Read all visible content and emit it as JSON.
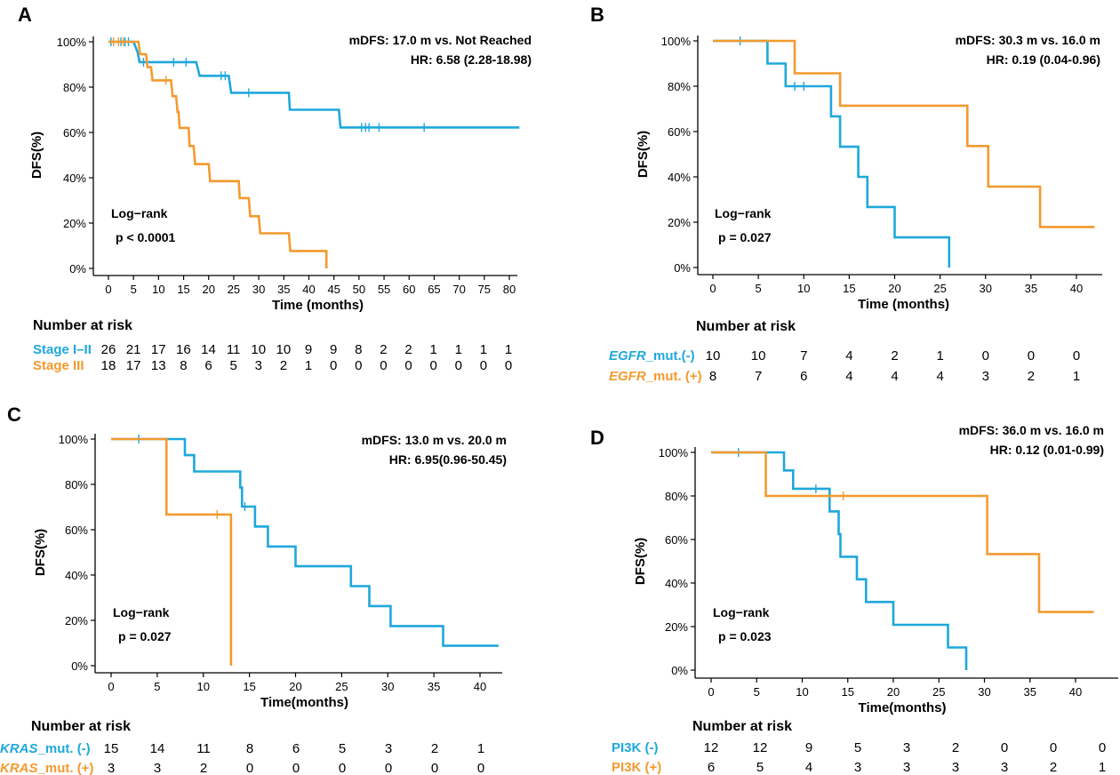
{
  "colors": {
    "blue": "#1EA8DB",
    "orange": "#F39A2F",
    "axis": "#000000"
  },
  "chart_data": [
    {
      "panel_label": "A",
      "type": "line",
      "subtype": "kaplan-meier",
      "ylabel": "DFS(%)",
      "xlabel": "Time (months)",
      "xlim": [
        0,
        82
      ],
      "xticks": [
        0,
        5,
        10,
        15,
        20,
        25,
        30,
        35,
        40,
        45,
        50,
        55,
        60,
        65,
        70,
        75,
        80
      ],
      "ylim": [
        0,
        100
      ],
      "yticks": [
        "0%",
        "20%",
        "40%",
        "60%",
        "80%",
        "100%"
      ],
      "annotation": [
        "mDFS:  17.0  m  vs.  Not Reached",
        "HR: 6.58 (2.28-18.98)"
      ],
      "test": [
        "Log−rank",
        "p < 0.0001"
      ],
      "risk_header": "Number at risk",
      "series": [
        {
          "name": "Stage I–II",
          "name_italic": "",
          "name_rest": "Stage I–II",
          "color": "blue",
          "steps": [
            [
              0,
              100
            ],
            [
              5,
              100
            ],
            [
              5.8,
              95.5
            ],
            [
              6.2,
              91
            ],
            [
              17.5,
              91
            ],
            [
              18.2,
              85
            ],
            [
              24,
              85
            ],
            [
              24.5,
              77.5
            ],
            [
              36,
              77.5
            ],
            [
              36.2,
              70
            ],
            [
              46,
              70
            ],
            [
              46.3,
              62.2
            ],
            [
              82,
              62.2
            ]
          ],
          "censors": [
            [
              0.5,
              100
            ],
            [
              2.5,
              100
            ],
            [
              3.3,
              100
            ],
            [
              4,
              100
            ],
            [
              7,
              91
            ],
            [
              13,
              91
            ],
            [
              15.5,
              91
            ],
            [
              22.5,
              85
            ],
            [
              23.3,
              85
            ],
            [
              28,
              77.5
            ],
            [
              50.5,
              62.2
            ],
            [
              51.3,
              62.2
            ],
            [
              52,
              62.2
            ],
            [
              54,
              62.2
            ],
            [
              63,
              62.2
            ]
          ],
          "risk": [
            "26",
            "21",
            "17",
            "16",
            "14",
            "11",
            "10",
            "10",
            "9",
            "9",
            "8",
            "2",
            "2",
            "1",
            "1",
            "1",
            "1"
          ]
        },
        {
          "name": "Stage III",
          "name_italic": "",
          "name_rest": "Stage III",
          "color": "orange",
          "steps": [
            [
              0,
              100
            ],
            [
              6,
              100
            ],
            [
              6.3,
              94.5
            ],
            [
              7.5,
              94.5
            ],
            [
              7.8,
              88.8
            ],
            [
              8.5,
              88.8
            ],
            [
              8.8,
              83
            ],
            [
              12.5,
              83
            ],
            [
              12.8,
              76
            ],
            [
              13.5,
              76
            ],
            [
              13.8,
              69
            ],
            [
              14,
              69
            ],
            [
              14.2,
              62
            ],
            [
              16,
              62
            ],
            [
              16.2,
              54
            ],
            [
              17,
              54
            ],
            [
              17.3,
              46
            ],
            [
              20,
              46
            ],
            [
              20.3,
              38.5
            ],
            [
              26,
              38.5
            ],
            [
              26.2,
              31
            ],
            [
              28,
              31
            ],
            [
              28.3,
              23
            ],
            [
              30,
              23
            ],
            [
              30.3,
              15.5
            ],
            [
              36,
              15.5
            ],
            [
              36.3,
              7.7
            ],
            [
              43.5,
              7.7
            ],
            [
              43.5,
              0
            ]
          ],
          "censors": [
            [
              1,
              100
            ],
            [
              2,
              100
            ],
            [
              3,
              100
            ],
            [
              11.5,
              83
            ]
          ],
          "risk": [
            "18",
            "17",
            "13",
            "8",
            "6",
            "5",
            "3",
            "2",
            "1",
            "0",
            "0",
            "0",
            "0",
            "0",
            "0",
            "0",
            "0"
          ]
        }
      ]
    },
    {
      "panel_label": "B",
      "type": "line",
      "subtype": "kaplan-meier",
      "ylabel": "DFS(%)",
      "xlabel": "Time (months)",
      "xlim": [
        0,
        42
      ],
      "xticks": [
        0,
        5,
        10,
        15,
        20,
        25,
        30,
        35,
        40
      ],
      "ylim": [
        0,
        100
      ],
      "yticks": [
        "0%",
        "20%",
        "40%",
        "60%",
        "80%",
        "100%"
      ],
      "annotation": [
        "mDFS: 30.3 m vs. 16.0 m",
        "HR: 0.19 (0.04-0.96)"
      ],
      "test": [
        "Log−rank",
        "p = 0.027"
      ],
      "risk_header": "Number at risk",
      "series": [
        {
          "name": "EGFR_mut.(-)",
          "name_italic": "EGFR",
          "name_rest": "_mut.(-)",
          "color": "blue",
          "steps": [
            [
              0,
              100
            ],
            [
              6,
              100
            ],
            [
              6,
              90
            ],
            [
              8,
              90
            ],
            [
              8,
              80
            ],
            [
              13,
              80
            ],
            [
              13,
              66.7
            ],
            [
              14,
              66.7
            ],
            [
              14,
              53.3
            ],
            [
              16,
              53.3
            ],
            [
              16,
              40
            ],
            [
              17,
              40
            ],
            [
              17,
              26.7
            ],
            [
              20,
              26.7
            ],
            [
              20,
              13.3
            ],
            [
              26,
              13.3
            ],
            [
              26,
              0
            ]
          ],
          "censors": [
            [
              3,
              100
            ],
            [
              9,
              80
            ],
            [
              10,
              80
            ]
          ],
          "risk": [
            "10",
            "10",
            "7",
            "4",
            "2",
            "1",
            "0",
            "0",
            "0"
          ]
        },
        {
          "name": "EGFR_mut. (+)",
          "name_italic": "EGFR",
          "name_rest": "_mut. (+)",
          "color": "orange",
          "steps": [
            [
              0,
              100
            ],
            [
              9,
              100
            ],
            [
              9,
              85.7
            ],
            [
              14,
              85.7
            ],
            [
              14,
              71.4
            ],
            [
              28,
              71.4
            ],
            [
              28,
              53.6
            ],
            [
              30.3,
              53.6
            ],
            [
              30.3,
              35.7
            ],
            [
              36,
              35.7
            ],
            [
              36,
              17.9
            ],
            [
              42,
              17.9
            ]
          ],
          "censors": [],
          "risk": [
            "8",
            "7",
            "6",
            "4",
            "4",
            "4",
            "3",
            "2",
            "1"
          ]
        }
      ]
    },
    {
      "panel_label": "C",
      "type": "line",
      "subtype": "kaplan-meier",
      "ylabel": "DFS(%)",
      "xlabel": "Time(months)",
      "xlim": [
        0,
        42
      ],
      "xticks": [
        0,
        5,
        10,
        15,
        20,
        25,
        30,
        35,
        40
      ],
      "ylim": [
        0,
        100
      ],
      "yticks": [
        "0%",
        "20%",
        "40%",
        "60%",
        "80%",
        "100%"
      ],
      "annotation": [
        "mDFS: 13.0 m vs. 20.0 m",
        "HR: 6.95(0.96-50.45)"
      ],
      "test": [
        "Log−rank",
        "p = 0.027"
      ],
      "risk_header": "Number at risk",
      "series": [
        {
          "name": "KRAS_mut. (-)",
          "name_italic": "KRAS",
          "name_rest": "_mut. (-)",
          "color": "blue",
          "steps": [
            [
              0,
              100
            ],
            [
              8,
              100
            ],
            [
              8,
              92.9
            ],
            [
              9,
              92.9
            ],
            [
              9,
              85.7
            ],
            [
              14,
              85.7
            ],
            [
              14,
              78.6
            ],
            [
              14.2,
              78.6
            ],
            [
              14.2,
              70.2
            ],
            [
              15.6,
              70.2
            ],
            [
              15.6,
              61.4
            ],
            [
              17,
              61.4
            ],
            [
              17,
              52.6
            ],
            [
              20,
              52.6
            ],
            [
              20,
              43.9
            ],
            [
              26,
              43.9
            ],
            [
              26,
              35.1
            ],
            [
              28,
              35.1
            ],
            [
              28,
              26.3
            ],
            [
              30.3,
              26.3
            ],
            [
              30.3,
              17.5
            ],
            [
              36,
              17.5
            ],
            [
              36,
              8.8
            ],
            [
              42,
              8.8
            ]
          ],
          "censors": [
            [
              3,
              100
            ],
            [
              14.5,
              70.2
            ]
          ],
          "risk": [
            "15",
            "14",
            "11",
            "8",
            "6",
            "5",
            "3",
            "2",
            "1"
          ]
        },
        {
          "name": "KRAS_mut. (+)",
          "name_italic": "KRAS",
          "name_rest": "_mut. (+)",
          "color": "orange",
          "steps": [
            [
              0,
              100
            ],
            [
              6,
              100
            ],
            [
              6,
              66.7
            ],
            [
              13,
              66.7
            ],
            [
              13,
              0
            ]
          ],
          "censors": [
            [
              11.5,
              66.7
            ]
          ],
          "risk": [
            "3",
            "3",
            "2",
            "0",
            "0",
            "0",
            "0",
            "0",
            "0"
          ]
        }
      ]
    },
    {
      "panel_label": "D",
      "type": "line",
      "subtype": "kaplan-meier",
      "ylabel": "DFS(%)",
      "xlabel": "Time(months)",
      "xlim": [
        0,
        42
      ],
      "xticks": [
        0,
        5,
        10,
        15,
        20,
        25,
        30,
        35,
        40
      ],
      "ylim": [
        0,
        100
      ],
      "yticks": [
        "0%",
        "20%",
        "40%",
        "60%",
        "80%",
        "100%"
      ],
      "annotation": [
        "mDFS: 36.0 m vs. 16.0 m",
        "HR: 0.12 (0.01-0.99)"
      ],
      "test": [
        "Log−rank",
        "p = 0.023"
      ],
      "risk_header": "Number at risk",
      "series": [
        {
          "name": "PI3K (-)",
          "name_italic": "",
          "name_rest": "PI3K (-)",
          "color": "blue",
          "steps": [
            [
              0,
              100
            ],
            [
              8,
              100
            ],
            [
              8,
              91.7
            ],
            [
              9,
              91.7
            ],
            [
              9,
              83.3
            ],
            [
              13,
              83.3
            ],
            [
              13,
              72.9
            ],
            [
              14,
              72.9
            ],
            [
              14,
              62.5
            ],
            [
              14.2,
              62.5
            ],
            [
              14.2,
              52.1
            ],
            [
              16,
              52.1
            ],
            [
              16,
              41.7
            ],
            [
              17,
              41.7
            ],
            [
              17,
              31.3
            ],
            [
              20,
              31.3
            ],
            [
              20,
              20.8
            ],
            [
              26,
              20.8
            ],
            [
              26,
              10.4
            ],
            [
              28,
              10.4
            ],
            [
              28,
              0
            ]
          ],
          "censors": [
            [
              3,
              100
            ],
            [
              11.5,
              83.3
            ]
          ],
          "risk": [
            "12",
            "12",
            "9",
            "5",
            "3",
            "2",
            "0",
            "0",
            "0"
          ]
        },
        {
          "name": "PI3K (+)",
          "name_italic": "",
          "name_rest": "PI3K (+)",
          "color": "orange",
          "steps": [
            [
              0,
              100
            ],
            [
              6,
              100
            ],
            [
              6,
              80
            ],
            [
              30.3,
              80
            ],
            [
              30.3,
              53.3
            ],
            [
              36,
              53.3
            ],
            [
              36,
              26.7
            ],
            [
              42,
              26.7
            ]
          ],
          "censors": [
            [
              14.5,
              80
            ]
          ],
          "risk": [
            "6",
            "5",
            "4",
            "3",
            "3",
            "3",
            "3",
            "2",
            "1"
          ]
        }
      ]
    }
  ]
}
